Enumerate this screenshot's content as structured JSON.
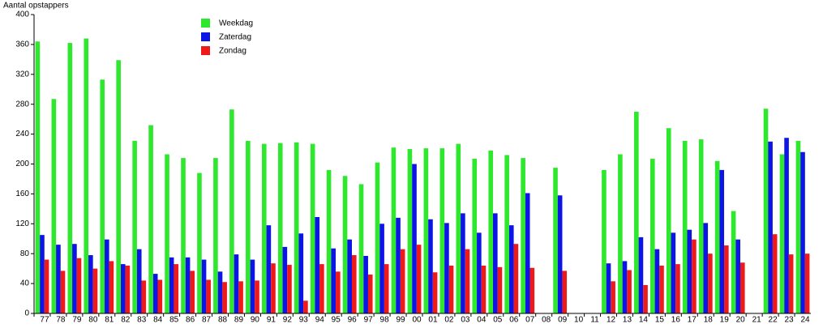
{
  "chart_data": {
    "type": "bar",
    "y_label": "Aantal opstappers",
    "categories": [
      "77",
      "78",
      "79",
      "80",
      "81",
      "82",
      "83",
      "84",
      "85",
      "86",
      "87",
      "88",
      "89",
      "90",
      "91",
      "92",
      "93",
      "94",
      "95",
      "96",
      "97",
      "98",
      "99",
      "00",
      "01",
      "02",
      "03",
      "04",
      "05",
      "06",
      "07",
      "08",
      "09",
      "10",
      "11",
      "12",
      "13",
      "14",
      "15",
      "16",
      "17",
      "18",
      "19",
      "20",
      "21",
      "22",
      "23",
      "24"
    ],
    "series": [
      {
        "name": "Weekdag",
        "color": "#2ee82e",
        "values": [
          364,
          287,
          362,
          368,
          313,
          339,
          231,
          252,
          213,
          208,
          188,
          208,
          273,
          231,
          227,
          228,
          229,
          227,
          192,
          184,
          173,
          202,
          222,
          220,
          221,
          221,
          227,
          207,
          218,
          212,
          208,
          null,
          195,
          null,
          null,
          192,
          213,
          270,
          207,
          248,
          231,
          233,
          204,
          137,
          null,
          274,
          213,
          231
        ]
      },
      {
        "name": "Zaterdag",
        "color": "#0c14e6",
        "values": [
          105,
          92,
          93,
          78,
          99,
          66,
          86,
          53,
          75,
          75,
          72,
          56,
          79,
          72,
          118,
          89,
          107,
          129,
          87,
          99,
          77,
          120,
          128,
          200,
          126,
          121,
          134,
          108,
          134,
          118,
          161,
          null,
          158,
          null,
          null,
          67,
          70,
          102,
          86,
          108,
          112,
          121,
          192,
          99,
          null,
          230,
          235,
          216
        ]
      },
      {
        "name": "Zondag",
        "color": "#ee1a1a",
        "values": [
          72,
          57,
          74,
          60,
          70,
          64,
          44,
          45,
          66,
          57,
          45,
          42,
          43,
          44,
          67,
          65,
          17,
          66,
          56,
          78,
          52,
          66,
          86,
          92,
          55,
          64,
          86,
          64,
          62,
          93,
          61,
          null,
          57,
          null,
          null,
          43,
          58,
          38,
          64,
          66,
          99,
          80,
          91,
          68,
          null,
          106,
          79,
          80
        ]
      }
    ],
    "ylim": [
      0,
      400
    ],
    "yticks": [
      0,
      40,
      80,
      120,
      160,
      200,
      240,
      280,
      320,
      360,
      400
    ],
    "grid": false,
    "legend": "top-left"
  }
}
